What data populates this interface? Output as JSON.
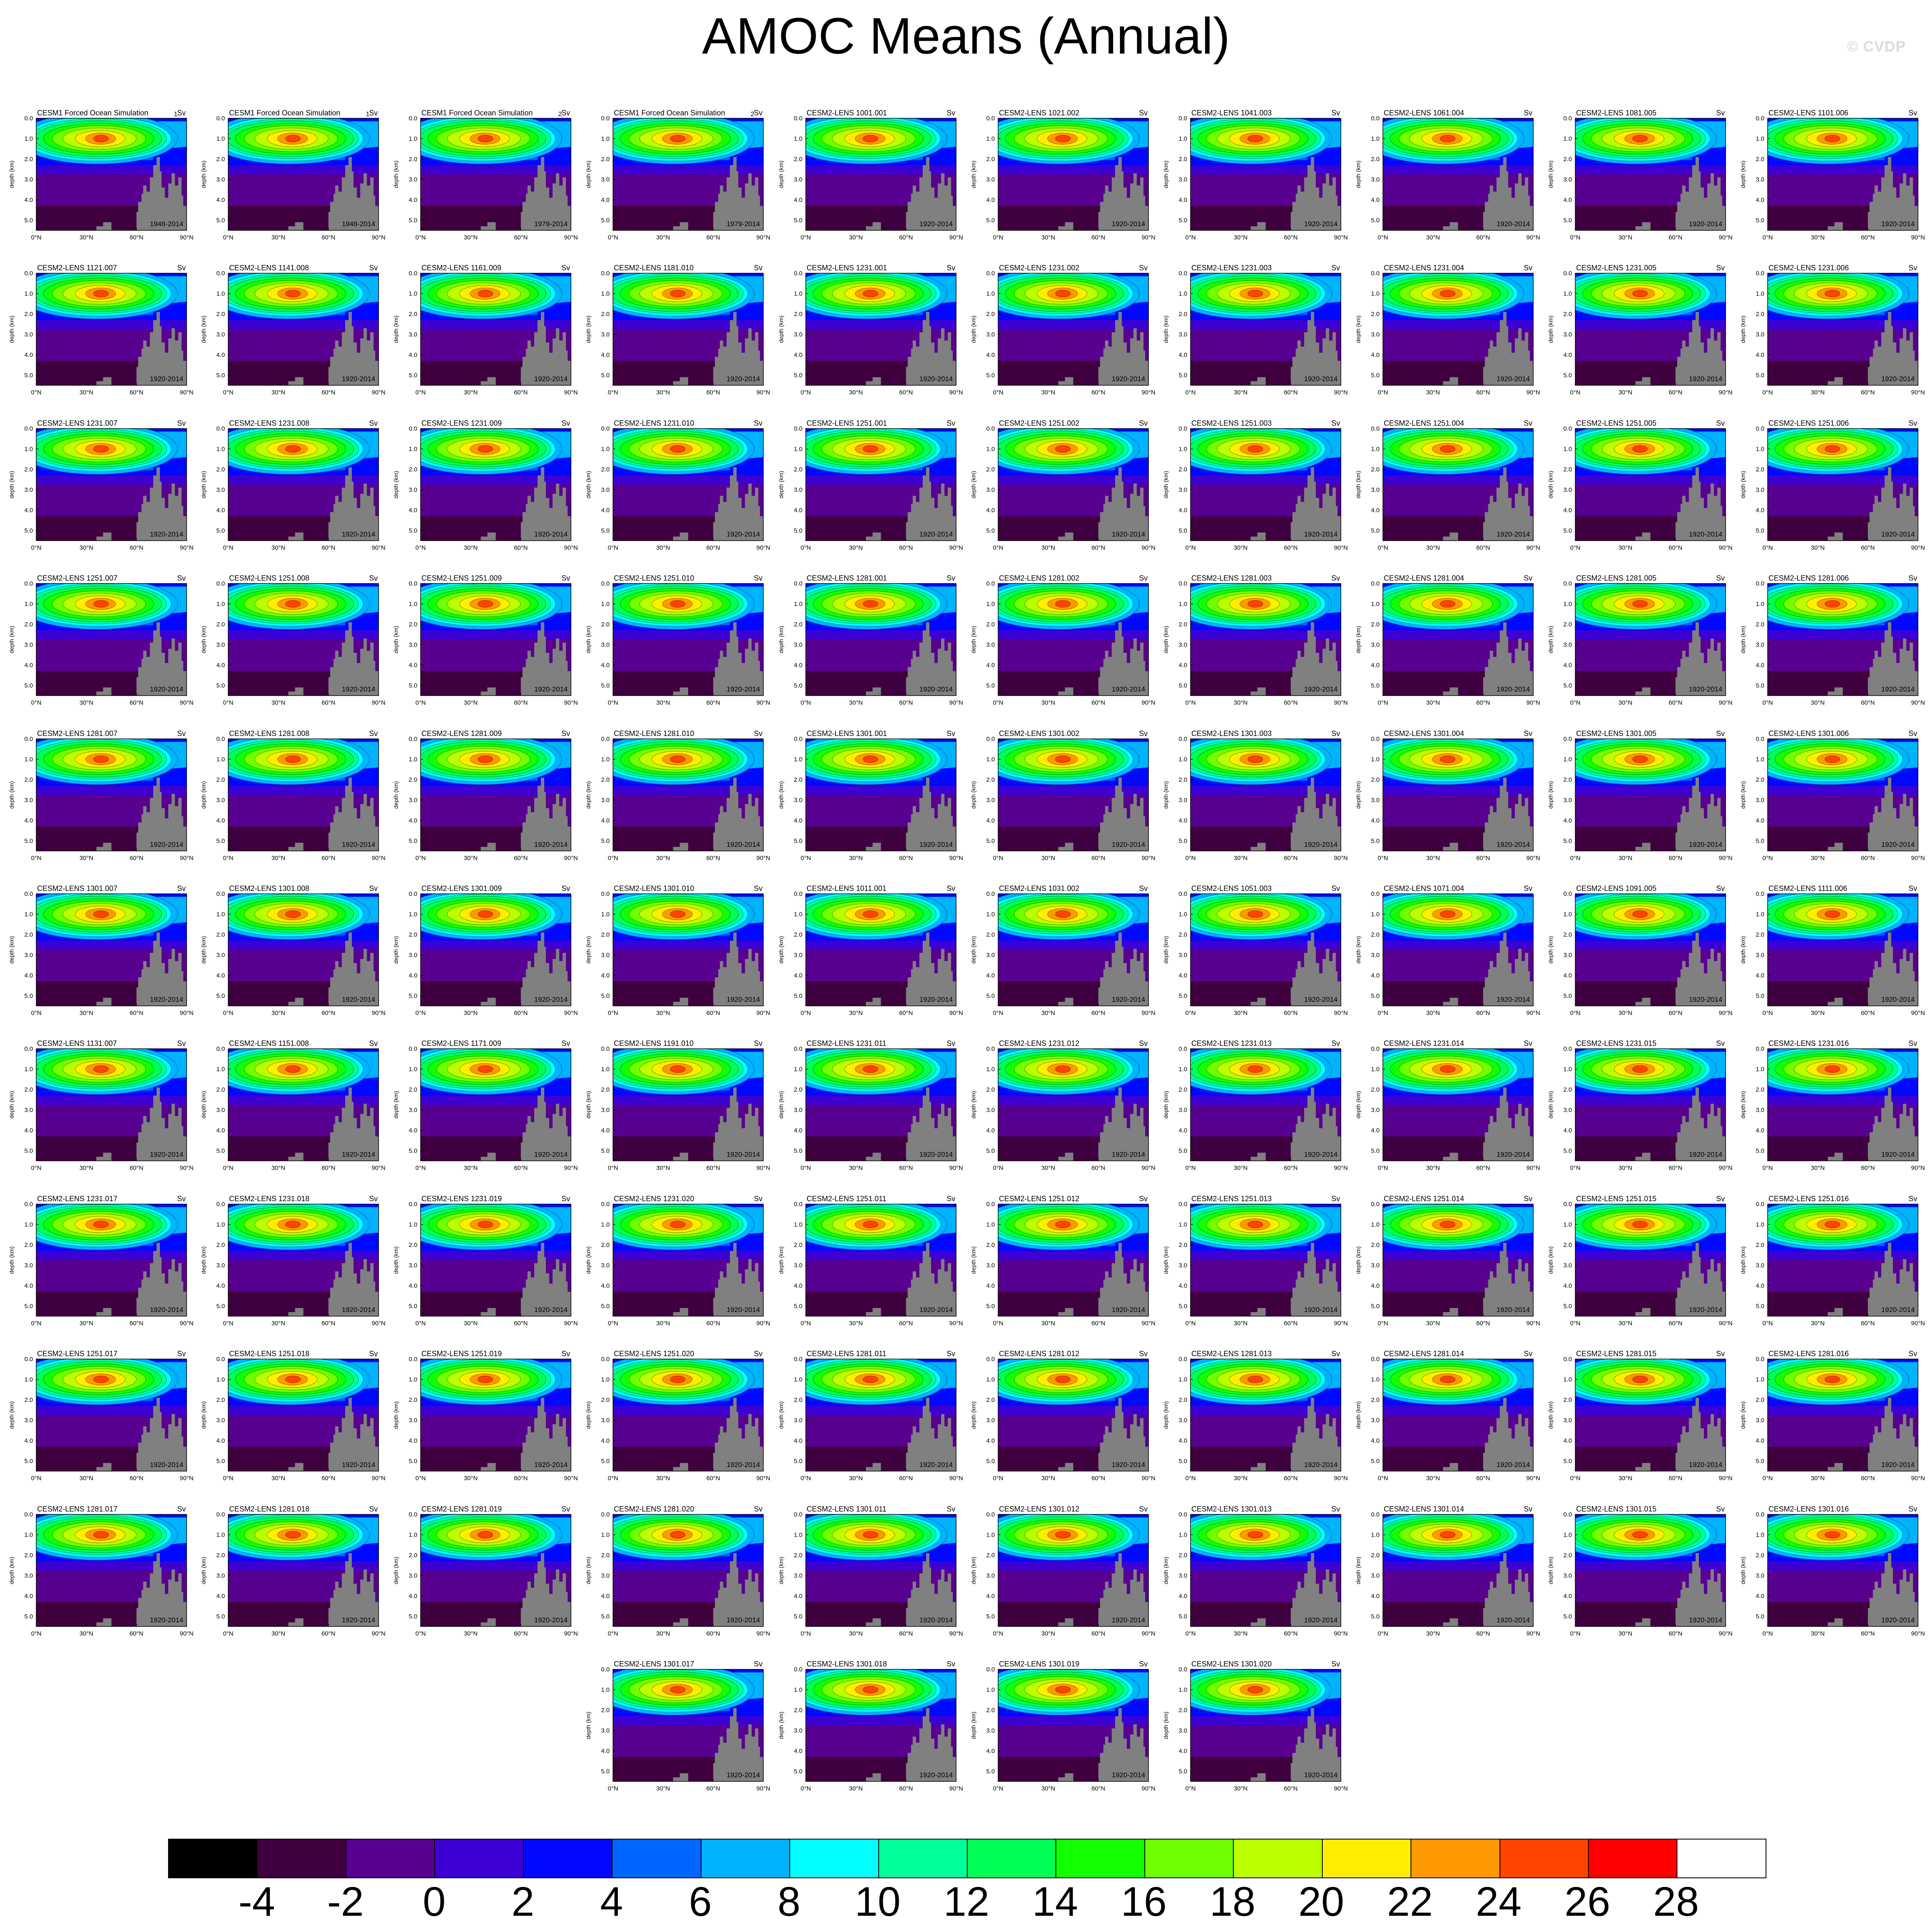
{
  "title": "AMOC Means (Annual)",
  "watermark": "© CVDP",
  "chart_data": {
    "type": "heatmap",
    "title": "AMOC Means (Annual)",
    "units": "Sv",
    "xlabel": "",
    "ylabel": "depth (km)",
    "xticks": [
      "0°N",
      "30°N",
      "60°N",
      "90°N"
    ],
    "yticks": [
      "0.0",
      "1.0",
      "2.0",
      "3.0",
      "4.0",
      "5.0"
    ],
    "xlim": [
      0,
      90
    ],
    "ylim": [
      5.5,
      0
    ],
    "colorbar": {
      "levels": [
        "-4",
        "-2",
        "0",
        "2",
        "4",
        "6",
        "8",
        "10",
        "12",
        "14",
        "16",
        "18",
        "20",
        "22",
        "24",
        "26",
        "28"
      ],
      "colors": [
        "#000000",
        "#3f003f",
        "#580090",
        "#3d00d2",
        "#0008ff",
        "#0066ff",
        "#00b3ff",
        "#00ffff",
        "#00ff99",
        "#00ff55",
        "#11ff00",
        "#6fff00",
        "#bbff00",
        "#ffee00",
        "#ff9900",
        "#ff4400",
        "#ff0000",
        "#ffffff"
      ]
    },
    "panels": [
      {
        "name": "CESM1 Forced Ocean Simulation",
        "units": "Sv",
        "years": "1948-2014",
        "overlay_index": "1"
      },
      {
        "name": "CESM1 Forced Ocean Simulation",
        "units": "Sv",
        "years": "1948-2014",
        "overlay_index": "1"
      },
      {
        "name": "CESM1 Forced Ocean Simulation",
        "units": "Sv",
        "years": "1979-2014",
        "overlay_index": "2"
      },
      {
        "name": "CESM1 Forced Ocean Simulation",
        "units": "Sv",
        "years": "1979-2014",
        "overlay_index": "2"
      },
      {
        "name": "CESM2-LENS 1001.001",
        "units": "Sv",
        "years": "1920-2014"
      },
      {
        "name": "CESM2-LENS 1021.002",
        "units": "Sv",
        "years": "1920-2014"
      },
      {
        "name": "CESM2-LENS 1041.003",
        "units": "Sv",
        "years": "1920-2014"
      },
      {
        "name": "CESM2-LENS 1061.004",
        "units": "Sv",
        "years": "1920-2014"
      },
      {
        "name": "CESM2-LENS 1081.005",
        "units": "Sv",
        "years": "1920-2014"
      },
      {
        "name": "CESM2-LENS 1101.006",
        "units": "Sv",
        "years": "1920-2014"
      },
      {
        "name": "CESM2-LENS 1121.007",
        "units": "Sv",
        "years": "1920-2014"
      },
      {
        "name": "CESM2-LENS 1141.008",
        "units": "Sv",
        "years": "1920-2014"
      },
      {
        "name": "CESM2-LENS 1161.009",
        "units": "Sv",
        "years": "1920-2014"
      },
      {
        "name": "CESM2-LENS 1181.010",
        "units": "Sv",
        "years": "1920-2014"
      },
      {
        "name": "CESM2-LENS 1231.001",
        "units": "Sv",
        "years": "1920-2014"
      },
      {
        "name": "CESM2-LENS 1231.002",
        "units": "Sv",
        "years": "1920-2014"
      },
      {
        "name": "CESM2-LENS 1231.003",
        "units": "Sv",
        "years": "1920-2014"
      },
      {
        "name": "CESM2-LENS 1231.004",
        "units": "Sv",
        "years": "1920-2014"
      },
      {
        "name": "CESM2-LENS 1231.005",
        "units": "Sv",
        "years": "1920-2014"
      },
      {
        "name": "CESM2-LENS 1231.006",
        "units": "Sv",
        "years": "1920-2014"
      },
      {
        "name": "CESM2-LENS 1231.007",
        "units": "Sv",
        "years": "1920-2014"
      },
      {
        "name": "CESM2-LENS 1231.008",
        "units": "Sv",
        "years": "1920-2014"
      },
      {
        "name": "CESM2-LENS 1231.009",
        "units": "Sv",
        "years": "1920-2014"
      },
      {
        "name": "CESM2-LENS 1231.010",
        "units": "Sv",
        "years": "1920-2014"
      },
      {
        "name": "CESM2-LENS 1251.001",
        "units": "Sv",
        "years": "1920-2014"
      },
      {
        "name": "CESM2-LENS 1251.002",
        "units": "Sv",
        "years": "1920-2014"
      },
      {
        "name": "CESM2-LENS 1251.003",
        "units": "Sv",
        "years": "1920-2014"
      },
      {
        "name": "CESM2-LENS 1251.004",
        "units": "Sv",
        "years": "1920-2014"
      },
      {
        "name": "CESM2-LENS 1251.005",
        "units": "Sv",
        "years": "1920-2014"
      },
      {
        "name": "CESM2-LENS 1251.006",
        "units": "Sv",
        "years": "1920-2014"
      },
      {
        "name": "CESM2-LENS 1251.007",
        "units": "Sv",
        "years": "1920-2014"
      },
      {
        "name": "CESM2-LENS 1251.008",
        "units": "Sv",
        "years": "1920-2014"
      },
      {
        "name": "CESM2-LENS 1251.009",
        "units": "Sv",
        "years": "1920-2014"
      },
      {
        "name": "CESM2-LENS 1251.010",
        "units": "Sv",
        "years": "1920-2014"
      },
      {
        "name": "CESM2-LENS 1281.001",
        "units": "Sv",
        "years": "1920-2014"
      },
      {
        "name": "CESM2-LENS 1281.002",
        "units": "Sv",
        "years": "1920-2014"
      },
      {
        "name": "CESM2-LENS 1281.003",
        "units": "Sv",
        "years": "1920-2014"
      },
      {
        "name": "CESM2-LENS 1281.004",
        "units": "Sv",
        "years": "1920-2014"
      },
      {
        "name": "CESM2-LENS 1281.005",
        "units": "Sv",
        "years": "1920-2014"
      },
      {
        "name": "CESM2-LENS 1281.006",
        "units": "Sv",
        "years": "1920-2014"
      },
      {
        "name": "CESM2-LENS 1281.007",
        "units": "Sv",
        "years": "1920-2014"
      },
      {
        "name": "CESM2-LENS 1281.008",
        "units": "Sv",
        "years": "1920-2014"
      },
      {
        "name": "CESM2-LENS 1281.009",
        "units": "Sv",
        "years": "1920-2014"
      },
      {
        "name": "CESM2-LENS 1281.010",
        "units": "Sv",
        "years": "1920-2014"
      },
      {
        "name": "CESM2-LENS 1301.001",
        "units": "Sv",
        "years": "1920-2014"
      },
      {
        "name": "CESM2-LENS 1301.002",
        "units": "Sv",
        "years": "1920-2014"
      },
      {
        "name": "CESM2-LENS 1301.003",
        "units": "Sv",
        "years": "1920-2014"
      },
      {
        "name": "CESM2-LENS 1301.004",
        "units": "Sv",
        "years": "1920-2014"
      },
      {
        "name": "CESM2-LENS 1301.005",
        "units": "Sv",
        "years": "1920-2014"
      },
      {
        "name": "CESM2-LENS 1301.006",
        "units": "Sv",
        "years": "1920-2014"
      },
      {
        "name": "CESM2-LENS 1301.007",
        "units": "Sv",
        "years": "1920-2014"
      },
      {
        "name": "CESM2-LENS 1301.008",
        "units": "Sv",
        "years": "1920-2014"
      },
      {
        "name": "CESM2-LENS 1301.009",
        "units": "Sv",
        "years": "1920-2014"
      },
      {
        "name": "CESM2-LENS 1301.010",
        "units": "Sv",
        "years": "1920-2014"
      },
      {
        "name": "CESM2-LENS 1011.001",
        "units": "Sv",
        "years": "1920-2014"
      },
      {
        "name": "CESM2-LENS 1031.002",
        "units": "Sv",
        "years": "1920-2014"
      },
      {
        "name": "CESM2-LENS 1051.003",
        "units": "Sv",
        "years": "1920-2014"
      },
      {
        "name": "CESM2-LENS 1071.004",
        "units": "Sv",
        "years": "1920-2014"
      },
      {
        "name": "CESM2-LENS 1091.005",
        "units": "Sv",
        "years": "1920-2014"
      },
      {
        "name": "CESM2-LENS 1111.006",
        "units": "Sv",
        "years": "1920-2014"
      },
      {
        "name": "CESM2-LENS 1131.007",
        "units": "Sv",
        "years": "1920-2014"
      },
      {
        "name": "CESM2-LENS 1151.008",
        "units": "Sv",
        "years": "1920-2014"
      },
      {
        "name": "CESM2-LENS 1171.009",
        "units": "Sv",
        "years": "1920-2014"
      },
      {
        "name": "CESM2-LENS 1191.010",
        "units": "Sv",
        "years": "1920-2014"
      },
      {
        "name": "CESM2-LENS 1231.011",
        "units": "Sv",
        "years": "1920-2014"
      },
      {
        "name": "CESM2-LENS 1231.012",
        "units": "Sv",
        "years": "1920-2014"
      },
      {
        "name": "CESM2-LENS 1231.013",
        "units": "Sv",
        "years": "1920-2014"
      },
      {
        "name": "CESM2-LENS 1231.014",
        "units": "Sv",
        "years": "1920-2014"
      },
      {
        "name": "CESM2-LENS 1231.015",
        "units": "Sv",
        "years": "1920-2014"
      },
      {
        "name": "CESM2-LENS 1231.016",
        "units": "Sv",
        "years": "1920-2014"
      },
      {
        "name": "CESM2-LENS 1231.017",
        "units": "Sv",
        "years": "1920-2014"
      },
      {
        "name": "CESM2-LENS 1231.018",
        "units": "Sv",
        "years": "1920-2014"
      },
      {
        "name": "CESM2-LENS 1231.019",
        "units": "Sv",
        "years": "1920-2014"
      },
      {
        "name": "CESM2-LENS 1231.020",
        "units": "Sv",
        "years": "1920-2014"
      },
      {
        "name": "CESM2-LENS 1251.011",
        "units": "Sv",
        "years": "1920-2014"
      },
      {
        "name": "CESM2-LENS 1251.012",
        "units": "Sv",
        "years": "1920-2014"
      },
      {
        "name": "CESM2-LENS 1251.013",
        "units": "Sv",
        "years": "1920-2014"
      },
      {
        "name": "CESM2-LENS 1251.014",
        "units": "Sv",
        "years": "1920-2014"
      },
      {
        "name": "CESM2-LENS 1251.015",
        "units": "Sv",
        "years": "1920-2014"
      },
      {
        "name": "CESM2-LENS 1251.016",
        "units": "Sv",
        "years": "1920-2014"
      },
      {
        "name": "CESM2-LENS 1251.017",
        "units": "Sv",
        "years": "1920-2014"
      },
      {
        "name": "CESM2-LENS 1251.018",
        "units": "Sv",
        "years": "1920-2014"
      },
      {
        "name": "CESM2-LENS 1251.019",
        "units": "Sv",
        "years": "1920-2014"
      },
      {
        "name": "CESM2-LENS 1251.020",
        "units": "Sv",
        "years": "1920-2014"
      },
      {
        "name": "CESM2-LENS 1281.011",
        "units": "Sv",
        "years": "1920-2014"
      },
      {
        "name": "CESM2-LENS 1281.012",
        "units": "Sv",
        "years": "1920-2014"
      },
      {
        "name": "CESM2-LENS 1281.013",
        "units": "Sv",
        "years": "1920-2014"
      },
      {
        "name": "CESM2-LENS 1281.014",
        "units": "Sv",
        "years": "1920-2014"
      },
      {
        "name": "CESM2-LENS 1281.015",
        "units": "Sv",
        "years": "1920-2014"
      },
      {
        "name": "CESM2-LENS 1281.016",
        "units": "Sv",
        "years": "1920-2014"
      },
      {
        "name": "CESM2-LENS 1281.017",
        "units": "Sv",
        "years": "1920-2014"
      },
      {
        "name": "CESM2-LENS 1281.018",
        "units": "Sv",
        "years": "1920-2014"
      },
      {
        "name": "CESM2-LENS 1281.019",
        "units": "Sv",
        "years": "1920-2014"
      },
      {
        "name": "CESM2-LENS 1281.020",
        "units": "Sv",
        "years": "1920-2014"
      },
      {
        "name": "CESM2-LENS 1301.011",
        "units": "Sv",
        "years": "1920-2014"
      },
      {
        "name": "CESM2-LENS 1301.012",
        "units": "Sv",
        "years": "1920-2014"
      },
      {
        "name": "CESM2-LENS 1301.013",
        "units": "Sv",
        "years": "1920-2014"
      },
      {
        "name": "CESM2-LENS 1301.014",
        "units": "Sv",
        "years": "1920-2014"
      },
      {
        "name": "CESM2-LENS 1301.015",
        "units": "Sv",
        "years": "1920-2014"
      },
      {
        "name": "CESM2-LENS 1301.016",
        "units": "Sv",
        "years": "1920-2014"
      },
      {
        "name": "CESM2-LENS 1301.017",
        "units": "Sv",
        "years": "1920-2014"
      },
      {
        "name": "CESM2-LENS 1301.018",
        "units": "Sv",
        "years": "1920-2014"
      },
      {
        "name": "CESM2-LENS 1301.019",
        "units": "Sv",
        "years": "1920-2014"
      },
      {
        "name": "CESM2-LENS 1301.020",
        "units": "Sv",
        "years": "1920-2014"
      }
    ]
  }
}
